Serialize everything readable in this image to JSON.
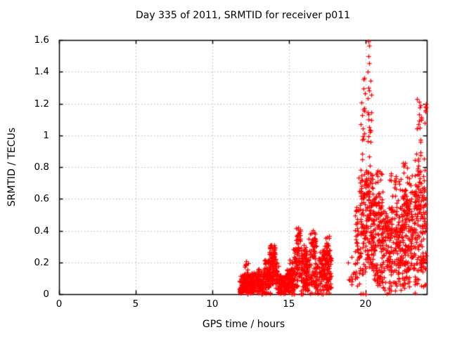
{
  "chart_data": {
    "type": "scatter",
    "title": "Day 335 of 2011, SRMTID for receiver p011",
    "xlabel": "GPS time / hours",
    "ylabel": "SRMTID / TECUs",
    "xlim": [
      0,
      24
    ],
    "ylim": [
      0,
      1.6
    ],
    "xticks": [
      0,
      5,
      10,
      15,
      20
    ],
    "yticks": [
      0,
      0.2,
      0.4,
      0.6,
      0.8,
      1.0,
      1.2,
      1.4,
      1.6
    ],
    "xtick_labels": [
      "0",
      "5",
      "10",
      "15",
      "20"
    ],
    "ytick_labels": [
      "0",
      "0.2",
      "0.4",
      "0.6",
      "0.8",
      "1",
      "1.2",
      "1.4",
      "1.6"
    ],
    "grid": true,
    "legend": "none",
    "marker": {
      "shape": "plus",
      "size": 7,
      "color": "#ff0000"
    },
    "colors": {
      "marker": "#ff0000",
      "grid": "#b4b4b4",
      "axis": "#000000",
      "background": "#ffffff"
    },
    "seed": 20113350,
    "blob": {
      "x": 11.84,
      "y": 0.018,
      "size": 7
    },
    "point_bands": [
      [
        11.8,
        11.9,
        0.005,
        0.04,
        25
      ],
      [
        11.8,
        12.1,
        0.005,
        0.12,
        55
      ],
      [
        12.05,
        12.65,
        0.01,
        0.14,
        110
      ],
      [
        12.1,
        12.4,
        0.14,
        0.21,
        8
      ],
      [
        12.6,
        13.35,
        0.01,
        0.13,
        105
      ],
      [
        12.7,
        13.25,
        0.13,
        0.18,
        7
      ],
      [
        13.35,
        13.75,
        0.03,
        0.22,
        70
      ],
      [
        13.7,
        14.15,
        0.05,
        0.31,
        85
      ],
      [
        14.0,
        14.12,
        0.24,
        0.33,
        6
      ],
      [
        14.12,
        14.32,
        0.03,
        0.2,
        28
      ],
      [
        14.3,
        14.85,
        0.01,
        0.12,
        95
      ],
      [
        14.85,
        15.3,
        0.01,
        0.16,
        85
      ],
      [
        14.95,
        15.25,
        0.16,
        0.22,
        6
      ],
      [
        15.3,
        15.6,
        0.04,
        0.3,
        50
      ],
      [
        15.45,
        15.78,
        0.1,
        0.42,
        42
      ],
      [
        15.52,
        15.72,
        0.34,
        0.43,
        6
      ],
      [
        15.78,
        16.28,
        0.02,
        0.26,
        95
      ],
      [
        15.9,
        16.22,
        0.26,
        0.32,
        7
      ],
      [
        16.28,
        16.8,
        0.04,
        0.36,
        75
      ],
      [
        16.35,
        16.72,
        0.3,
        0.43,
        12
      ],
      [
        16.8,
        17.78,
        0.02,
        0.28,
        155
      ],
      [
        17.25,
        17.68,
        0.25,
        0.37,
        18
      ],
      [
        11.95,
        17.7,
        0.0,
        0.012,
        35
      ],
      [
        18.85,
        19.3,
        0.02,
        0.3,
        10
      ],
      [
        19.3,
        19.7,
        0.05,
        0.55,
        45
      ],
      [
        19.55,
        20.0,
        0.1,
        0.8,
        70
      ],
      [
        19.68,
        19.97,
        0.8,
        1.36,
        15
      ],
      [
        20.0,
        20.5,
        0.15,
        0.78,
        115
      ],
      [
        20.1,
        20.38,
        0.78,
        1.32,
        18
      ],
      [
        20.5,
        21.1,
        0.25,
        0.65,
        90
      ],
      [
        20.5,
        21.1,
        0.05,
        0.25,
        40
      ],
      [
        20.55,
        21.05,
        0.65,
        0.78,
        10
      ],
      [
        21.1,
        22.3,
        0.15,
        0.55,
        170
      ],
      [
        21.1,
        22.3,
        0.02,
        0.15,
        30
      ],
      [
        21.5,
        22.3,
        0.55,
        0.76,
        20
      ],
      [
        22.3,
        23.15,
        0.15,
        0.6,
        140
      ],
      [
        22.4,
        23.1,
        0.6,
        0.87,
        25
      ],
      [
        22.3,
        23.1,
        0.03,
        0.15,
        20
      ],
      [
        23.15,
        23.95,
        0.15,
        0.65,
        130
      ],
      [
        23.2,
        23.9,
        0.65,
        0.9,
        30
      ],
      [
        23.35,
        23.7,
        0.85,
        1.23,
        14
      ],
      [
        23.2,
        23.9,
        0.03,
        0.15,
        15
      ],
      [
        19.6,
        23.4,
        0.0,
        0.01,
        6
      ],
      [
        23.85,
        23.98,
        0.95,
        1.22,
        6
      ]
    ],
    "notable_points": [
      [
        20.18,
        1.59
      ],
      [
        20.23,
        1.565
      ],
      [
        20.2,
        1.5
      ],
      [
        20.26,
        1.455
      ],
      [
        20.16,
        1.4
      ],
      [
        20.31,
        1.345
      ],
      [
        19.9,
        1.36
      ],
      [
        19.85,
        1.295
      ],
      [
        23.5,
        1.21
      ],
      [
        23.56,
        1.175
      ],
      [
        23.62,
        1.115
      ],
      [
        23.44,
        1.07
      ]
    ]
  }
}
